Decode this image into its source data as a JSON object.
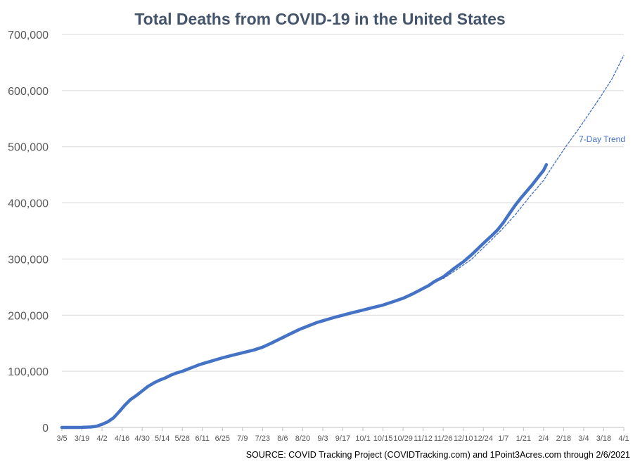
{
  "chart_data": {
    "type": "line",
    "title": "Total Deaths from COVID-19 in the United States",
    "xlabel": "",
    "ylabel": "",
    "ylim": [
      0,
      700000
    ],
    "yticks": [
      0,
      100000,
      200000,
      300000,
      400000,
      500000,
      600000,
      700000
    ],
    "ytick_labels": [
      "0",
      "100,000",
      "200,000",
      "300,000",
      "400,000",
      "500,000",
      "600,000",
      "700,000"
    ],
    "xlim_days": [
      0,
      392
    ],
    "xticks": [
      {
        "label": "3/5",
        "day": 0
      },
      {
        "label": "3/19",
        "day": 14
      },
      {
        "label": "4/2",
        "day": 28
      },
      {
        "label": "4/16",
        "day": 42
      },
      {
        "label": "4/30",
        "day": 56
      },
      {
        "label": "5/14",
        "day": 70
      },
      {
        "label": "5/28",
        "day": 84
      },
      {
        "label": "6/11",
        "day": 98
      },
      {
        "label": "6/25",
        "day": 112
      },
      {
        "label": "7/9",
        "day": 126
      },
      {
        "label": "7/23",
        "day": 140
      },
      {
        "label": "8/6",
        "day": 154
      },
      {
        "label": "8/20",
        "day": 168
      },
      {
        "label": "9/3",
        "day": 182
      },
      {
        "label": "9/17",
        "day": 196
      },
      {
        "label": "10/1",
        "day": 210
      },
      {
        "label": "10/15",
        "day": 224
      },
      {
        "label": "10/29",
        "day": 238
      },
      {
        "label": "11/12",
        "day": 252
      },
      {
        "label": "11/26",
        "day": 266
      },
      {
        "label": "12/10",
        "day": 280
      },
      {
        "label": "12/24",
        "day": 294
      },
      {
        "label": "1/7",
        "day": 308
      },
      {
        "label": "1/21",
        "day": 322
      },
      {
        "label": "2/4",
        "day": 336
      },
      {
        "label": "2/18",
        "day": 350
      },
      {
        "label": "3/4",
        "day": 364
      },
      {
        "label": "3/18",
        "day": 378
      },
      {
        "label": "4/1",
        "day": 392
      }
    ],
    "series": [
      {
        "name": "Total Deaths",
        "style": "solid",
        "color": "#4472c4",
        "points": [
          [
            0,
            12
          ],
          [
            10,
            60
          ],
          [
            14,
            150
          ],
          [
            20,
            700
          ],
          [
            24,
            2000
          ],
          [
            28,
            5500
          ],
          [
            32,
            10000
          ],
          [
            36,
            17000
          ],
          [
            40,
            28000
          ],
          [
            44,
            40000
          ],
          [
            48,
            50000
          ],
          [
            52,
            57000
          ],
          [
            56,
            65000
          ],
          [
            60,
            73000
          ],
          [
            64,
            79000
          ],
          [
            68,
            84000
          ],
          [
            72,
            88000
          ],
          [
            76,
            93000
          ],
          [
            80,
            97000
          ],
          [
            84,
            100000
          ],
          [
            88,
            104000
          ],
          [
            92,
            108000
          ],
          [
            96,
            112000
          ],
          [
            100,
            115000
          ],
          [
            104,
            118000
          ],
          [
            108,
            121000
          ],
          [
            112,
            124000
          ],
          [
            118,
            128000
          ],
          [
            126,
            133000
          ],
          [
            134,
            138000
          ],
          [
            140,
            143000
          ],
          [
            146,
            150000
          ],
          [
            150,
            155000
          ],
          [
            154,
            160000
          ],
          [
            158,
            165000
          ],
          [
            162,
            170000
          ],
          [
            166,
            175000
          ],
          [
            170,
            179000
          ],
          [
            174,
            183000
          ],
          [
            178,
            187000
          ],
          [
            182,
            190000
          ],
          [
            186,
            193000
          ],
          [
            190,
            196000
          ],
          [
            196,
            200000
          ],
          [
            202,
            204000
          ],
          [
            210,
            209000
          ],
          [
            216,
            213000
          ],
          [
            224,
            218000
          ],
          [
            230,
            223000
          ],
          [
            238,
            230000
          ],
          [
            244,
            237000
          ],
          [
            250,
            245000
          ],
          [
            256,
            253000
          ],
          [
            260,
            260000
          ],
          [
            266,
            268000
          ],
          [
            270,
            276000
          ],
          [
            274,
            284000
          ],
          [
            280,
            295000
          ],
          [
            286,
            308000
          ],
          [
            290,
            318000
          ],
          [
            294,
            328000
          ],
          [
            300,
            342000
          ],
          [
            304,
            352000
          ],
          [
            308,
            365000
          ],
          [
            312,
            380000
          ],
          [
            316,
            395000
          ],
          [
            320,
            408000
          ],
          [
            324,
            420000
          ],
          [
            328,
            432000
          ],
          [
            332,
            445000
          ],
          [
            336,
            458000
          ],
          [
            338,
            468000
          ]
        ]
      },
      {
        "name": "7-Day Trend",
        "style": "dashed",
        "color": "#4472c4",
        "label": "7-Day Trend",
        "points": [
          [
            266,
            265000
          ],
          [
            276,
            282000
          ],
          [
            286,
            300000
          ],
          [
            296,
            325000
          ],
          [
            306,
            350000
          ],
          [
            316,
            378000
          ],
          [
            326,
            410000
          ],
          [
            336,
            440000
          ],
          [
            344,
            472000
          ],
          [
            352,
            502000
          ],
          [
            360,
            530000
          ],
          [
            368,
            560000
          ],
          [
            376,
            590000
          ],
          [
            384,
            622000
          ],
          [
            392,
            663000
          ]
        ]
      }
    ]
  },
  "source": "SOURCE: COVID Tracking Project (COVIDTracking.com) and 1Point3Acres.com through 2/6/2021"
}
